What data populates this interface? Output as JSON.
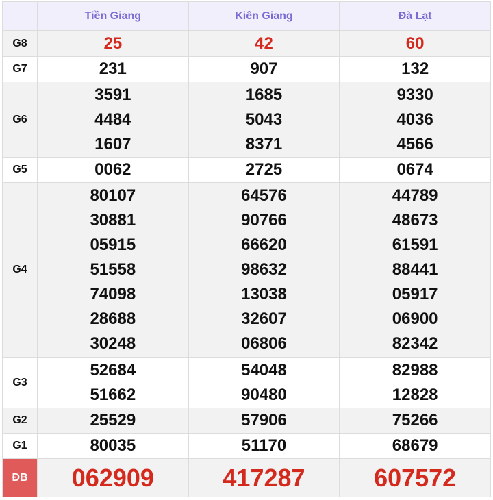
{
  "provinces": [
    "Tiền Giang",
    "Kiên Giang",
    "Đà Lạt"
  ],
  "colors": {
    "header_text": "#7a6cd3",
    "highlight_red": "#d42a1e",
    "db_label_bg": "#e05a5a"
  },
  "prizes": [
    {
      "label": "G8",
      "values": [
        [
          "25"
        ],
        [
          "42"
        ],
        [
          "60"
        ]
      ]
    },
    {
      "label": "G7",
      "values": [
        [
          "231"
        ],
        [
          "907"
        ],
        [
          "132"
        ]
      ]
    },
    {
      "label": "G6",
      "values": [
        [
          "3591",
          "4484",
          "1607"
        ],
        [
          "1685",
          "5043",
          "8371"
        ],
        [
          "9330",
          "4036",
          "4566"
        ]
      ]
    },
    {
      "label": "G5",
      "values": [
        [
          "0062"
        ],
        [
          "2725"
        ],
        [
          "0674"
        ]
      ]
    },
    {
      "label": "G4",
      "values": [
        [
          "80107",
          "30881",
          "05915",
          "51558",
          "74098",
          "28688",
          "30248"
        ],
        [
          "64576",
          "90766",
          "66620",
          "98632",
          "13038",
          "32607",
          "06806"
        ],
        [
          "44789",
          "48673",
          "61591",
          "88441",
          "05917",
          "06900",
          "82342"
        ]
      ]
    },
    {
      "label": "G3",
      "values": [
        [
          "52684",
          "51662"
        ],
        [
          "54048",
          "90480"
        ],
        [
          "82988",
          "12828"
        ]
      ]
    },
    {
      "label": "G2",
      "values": [
        [
          "25529"
        ],
        [
          "57906"
        ],
        [
          "75266"
        ]
      ]
    },
    {
      "label": "G1",
      "values": [
        [
          "80035"
        ],
        [
          "51170"
        ],
        [
          "68679"
        ]
      ]
    },
    {
      "label": "ĐB",
      "values": [
        [
          "062909"
        ],
        [
          "417287"
        ],
        [
          "607572"
        ]
      ]
    }
  ]
}
